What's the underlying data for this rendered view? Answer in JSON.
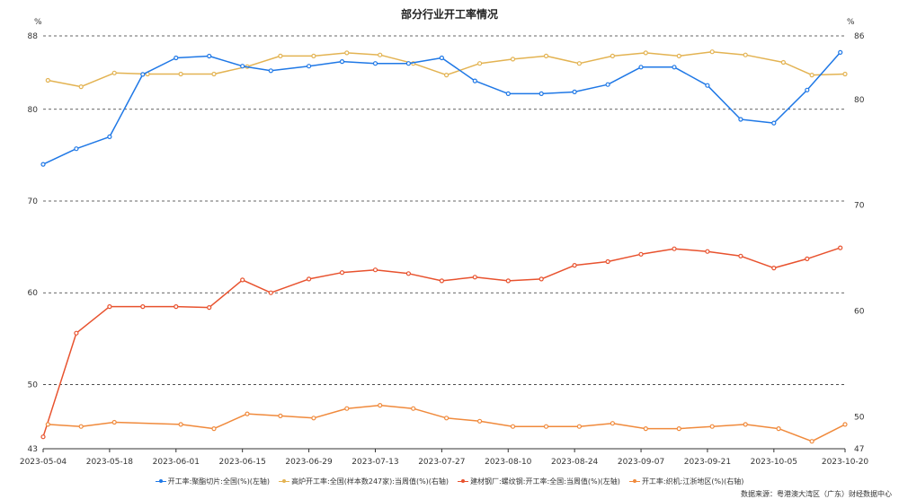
{
  "chart_data": {
    "type": "line",
    "title": "部分行业开工率情况",
    "left_unit": "%",
    "right_unit": "%",
    "left_axis": {
      "ylim": [
        43,
        88
      ],
      "ticks": [
        43,
        50,
        60,
        70,
        80,
        88
      ]
    },
    "right_axis": {
      "ylim": [
        47,
        86
      ],
      "ticks": [
        47,
        50,
        60,
        70,
        80,
        86
      ]
    },
    "x_tick_labels": [
      "2023-05-04",
      "2023-05-18",
      "2023-06-01",
      "2023-06-15",
      "2023-06-29",
      "2023-07-13",
      "2023-07-27",
      "2023-08-10",
      "2023-08-24",
      "2023-09-07",
      "2023-09-21",
      "2023-10-05",
      "2023-10-20"
    ],
    "x_range": [
      "2023-05-04",
      "2023-10-20"
    ],
    "grid": "horizontal dashed",
    "legend_position": "bottom",
    "series": [
      {
        "name": "开工率:聚酯切片:全国(%)(左轴)",
        "axis": "left",
        "color": "#1f78e6",
        "x": [
          "2023-05-04",
          "2023-05-11",
          "2023-05-18",
          "2023-05-25",
          "2023-06-01",
          "2023-06-08",
          "2023-06-15",
          "2023-06-21",
          "2023-06-29",
          "2023-07-06",
          "2023-07-13",
          "2023-07-20",
          "2023-07-27",
          "2023-08-03",
          "2023-08-10",
          "2023-08-17",
          "2023-08-24",
          "2023-08-31",
          "2023-09-07",
          "2023-09-14",
          "2023-09-21",
          "2023-09-28",
          "2023-10-05",
          "2023-10-12",
          "2023-10-19"
        ],
        "values": [
          74.0,
          75.7,
          77.0,
          83.8,
          85.6,
          85.8,
          84.7,
          84.2,
          84.7,
          85.2,
          85.0,
          85.0,
          85.6,
          83.1,
          81.7,
          81.7,
          81.9,
          82.7,
          84.6,
          84.6,
          82.6,
          78.9,
          78.5,
          82.1,
          86.2
        ]
      },
      {
        "name": "高炉开工率:全国(样本数247家):当周值(%)(右轴)",
        "axis": "right",
        "color": "#e3b352",
        "x": [
          "2023-05-05",
          "2023-05-12",
          "2023-05-19",
          "2023-05-26",
          "2023-06-02",
          "2023-06-09",
          "2023-06-16",
          "2023-06-23",
          "2023-06-30",
          "2023-07-07",
          "2023-07-14",
          "2023-07-21",
          "2023-07-28",
          "2023-08-04",
          "2023-08-11",
          "2023-08-18",
          "2023-08-25",
          "2023-09-01",
          "2023-09-08",
          "2023-09-15",
          "2023-09-22",
          "2023-09-29",
          "2023-10-07",
          "2023-10-13",
          "2023-10-20"
        ],
        "values": [
          81.8,
          81.2,
          82.5,
          82.4,
          82.4,
          82.4,
          83.1,
          84.1,
          84.1,
          84.4,
          84.2,
          83.4,
          82.3,
          83.4,
          83.8,
          84.1,
          83.4,
          84.1,
          84.4,
          84.1,
          84.5,
          84.2,
          83.5,
          82.3,
          82.4
        ]
      },
      {
        "name": "建材钢厂:螺纹钢:开工率:全国:当周值(%)(左轴)",
        "axis": "left",
        "color": "#e8522e",
        "x": [
          "2023-05-04",
          "2023-05-11",
          "2023-05-18",
          "2023-05-25",
          "2023-06-01",
          "2023-06-08",
          "2023-06-15",
          "2023-06-21",
          "2023-06-29",
          "2023-07-06",
          "2023-07-13",
          "2023-07-20",
          "2023-07-27",
          "2023-08-03",
          "2023-08-10",
          "2023-08-17",
          "2023-08-24",
          "2023-08-31",
          "2023-09-07",
          "2023-09-14",
          "2023-09-21",
          "2023-09-28",
          "2023-10-05",
          "2023-10-12",
          "2023-10-19"
        ],
        "values": [
          44.3,
          55.6,
          58.5,
          58.5,
          58.5,
          58.4,
          61.4,
          60.0,
          61.5,
          62.2,
          62.5,
          62.1,
          61.3,
          61.7,
          61.3,
          61.5,
          63.0,
          63.4,
          64.2,
          64.8,
          64.5,
          64.0,
          62.7,
          63.7,
          64.9
        ]
      },
      {
        "name": "开工率:织机:江浙地区(%)(右轴)",
        "axis": "right",
        "color": "#f08a3c",
        "x": [
          "2023-05-05",
          "2023-05-12",
          "2023-05-19",
          "2023-06-02",
          "2023-06-09",
          "2023-06-16",
          "2023-06-23",
          "2023-06-30",
          "2023-07-07",
          "2023-07-14",
          "2023-07-21",
          "2023-07-28",
          "2023-08-04",
          "2023-08-11",
          "2023-08-18",
          "2023-08-25",
          "2023-09-01",
          "2023-09-08",
          "2023-09-15",
          "2023-09-22",
          "2023-09-29",
          "2023-10-06",
          "2023-10-13",
          "2023-10-20"
        ],
        "values": [
          49.3,
          49.1,
          49.5,
          49.3,
          48.9,
          50.3,
          50.1,
          49.9,
          50.8,
          51.1,
          50.8,
          49.9,
          49.6,
          49.1,
          49.1,
          49.1,
          49.4,
          48.9,
          48.9,
          49.1,
          49.3,
          48.9,
          47.7,
          49.3
        ]
      }
    ]
  },
  "source": "数据来源：粤港澳大湾区（广东）财经数据中心"
}
